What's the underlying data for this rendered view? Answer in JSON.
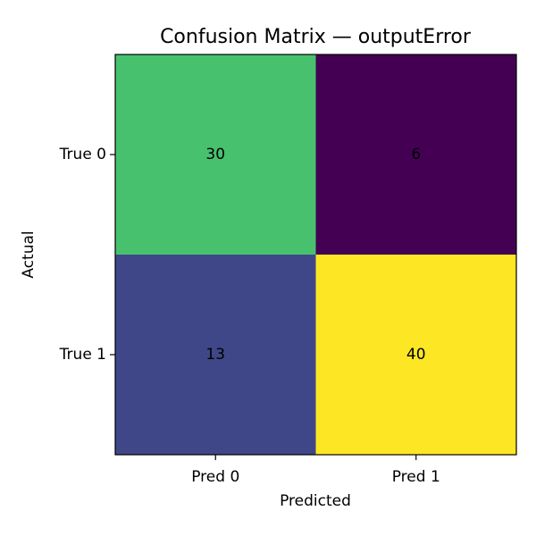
{
  "chart_data": {
    "type": "heatmap",
    "title": "Confusion Matrix — outputError",
    "xlabel": "Predicted",
    "ylabel": "Actual",
    "x_categories": [
      "Pred 0",
      "Pred 1"
    ],
    "y_categories": [
      "True 0",
      "True 1"
    ],
    "values": [
      [
        30,
        6
      ],
      [
        13,
        40
      ]
    ],
    "colormap": "viridis",
    "cell_colors": [
      [
        "#48c16e",
        "#440154"
      ],
      [
        "#3f4788",
        "#fde725"
      ]
    ],
    "color_range": [
      6,
      40
    ]
  }
}
